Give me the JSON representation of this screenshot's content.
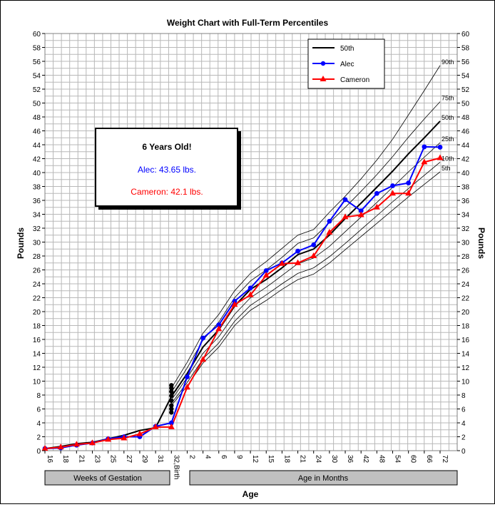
{
  "chart_data": {
    "type": "line",
    "title": "Weight Chart with Full-Term Percentiles",
    "xlabel": "Age",
    "ylabel": "Pounds",
    "ylim": [
      0,
      60
    ],
    "y_ticks": [
      0,
      2,
      4,
      6,
      8,
      10,
      12,
      14,
      16,
      18,
      20,
      22,
      24,
      26,
      28,
      30,
      32,
      34,
      36,
      38,
      40,
      42,
      44,
      46,
      48,
      50,
      52,
      54,
      56,
      58,
      60
    ],
    "x_categories": [
      "16",
      "18",
      "21",
      "23",
      "25",
      "27",
      "29",
      "31",
      "32,Birth",
      "2",
      "4",
      "6",
      "9",
      "12",
      "15",
      "18",
      "21",
      "24",
      "30",
      "36",
      "42",
      "48",
      "54",
      "60",
      "66",
      "72"
    ],
    "x_group_labels": [
      "Weeks of Gestation",
      "Age in Months"
    ],
    "legend": [
      "50th",
      "Alec",
      "Cameron"
    ],
    "annotation": {
      "title": "6 Years Old!",
      "line1": "Alec: 43.65 lbs.",
      "line2": "Cameron: 42.1 lbs.",
      "color1": "#0000ff",
      "color2": "#ff0000"
    },
    "percentile_series": [
      {
        "name": "90th",
        "values": [
          null,
          null,
          null,
          null,
          null,
          null,
          null,
          null,
          9.0,
          12.7,
          16.9,
          19.6,
          23.0,
          25.5,
          27.2,
          29.1,
          31.0,
          31.8,
          34.3,
          36.6,
          39.1,
          41.8,
          44.8,
          48.3,
          51.8,
          55.4
        ]
      },
      {
        "name": "75th",
        "values": [
          null,
          null,
          null,
          null,
          null,
          null,
          null,
          null,
          8.4,
          11.9,
          15.9,
          18.5,
          22.0,
          24.4,
          26.0,
          27.8,
          29.8,
          30.6,
          32.8,
          35.0,
          37.3,
          39.7,
          42.3,
          45.1,
          47.7,
          50.2
        ]
      },
      {
        "name": "50th",
        "values": [
          null,
          null,
          null,
          null,
          null,
          null,
          null,
          null,
          7.8,
          11.1,
          14.9,
          17.4,
          20.8,
          23.2,
          24.6,
          26.3,
          28.2,
          29.0,
          31.0,
          33.4,
          35.6,
          37.9,
          40.2,
          42.7,
          45.0,
          47.4
        ]
      },
      {
        "name": "25th",
        "values": [
          null,
          null,
          null,
          null,
          null,
          null,
          null,
          null,
          7.3,
          10.5,
          14.0,
          16.4,
          19.6,
          22.0,
          23.5,
          25.2,
          26.9,
          27.7,
          29.4,
          31.5,
          33.6,
          35.7,
          37.9,
          40.1,
          42.2,
          44.3
        ]
      },
      {
        "name": "10th",
        "values": [
          null,
          null,
          null,
          null,
          null,
          null,
          null,
          null,
          6.8,
          9.8,
          13.2,
          15.5,
          18.6,
          20.9,
          22.4,
          24.0,
          25.5,
          26.3,
          27.9,
          29.8,
          31.8,
          33.8,
          35.8,
          37.7,
          39.6,
          41.5
        ]
      },
      {
        "name": "5th",
        "values": [
          null,
          null,
          null,
          null,
          null,
          null,
          null,
          null,
          6.5,
          9.3,
          12.6,
          14.9,
          18.0,
          20.2,
          21.6,
          23.2,
          24.6,
          25.4,
          27.0,
          28.9,
          30.8,
          32.7,
          34.6,
          36.5,
          38.3,
          40.1
        ]
      }
    ],
    "series": [
      {
        "name": "50th",
        "color": "#000000",
        "values": [
          0.3,
          0.6,
          1.0,
          1.2,
          1.7,
          2.2,
          2.9,
          3.3,
          7.8,
          11.1,
          14.9,
          17.4,
          20.8,
          23.2,
          24.6,
          26.3,
          28.2,
          29.0,
          31.0,
          33.4,
          35.6,
          37.9,
          40.2,
          42.7,
          45.0,
          47.4
        ]
      },
      {
        "name": "Alec",
        "color": "#0000ff",
        "values": [
          0.3,
          0.4,
          0.8,
          1.1,
          1.7,
          2.0,
          2.0,
          3.5,
          4.0,
          10.6,
          16.2,
          18.1,
          21.5,
          23.4,
          25.9,
          27.0,
          28.7,
          29.6,
          33.0,
          36.1,
          34.5,
          37.0,
          38.1,
          38.5,
          43.7,
          43.65
        ]
      },
      {
        "name": "Cameron",
        "color": "#ff0000",
        "values": [
          0.3,
          0.5,
          0.9,
          1.1,
          1.6,
          1.8,
          2.4,
          3.4,
          3.4,
          9.1,
          13.1,
          17.5,
          21.0,
          22.4,
          25.2,
          26.9,
          27.0,
          28.0,
          31.4,
          33.6,
          33.9,
          35.0,
          37.0,
          37.0,
          41.5,
          42.1
        ]
      }
    ],
    "birth_dots": [
      5.5,
      6.0,
      6.5,
      7.2,
      7.9,
      8.5,
      9.0,
      9.4
    ]
  }
}
